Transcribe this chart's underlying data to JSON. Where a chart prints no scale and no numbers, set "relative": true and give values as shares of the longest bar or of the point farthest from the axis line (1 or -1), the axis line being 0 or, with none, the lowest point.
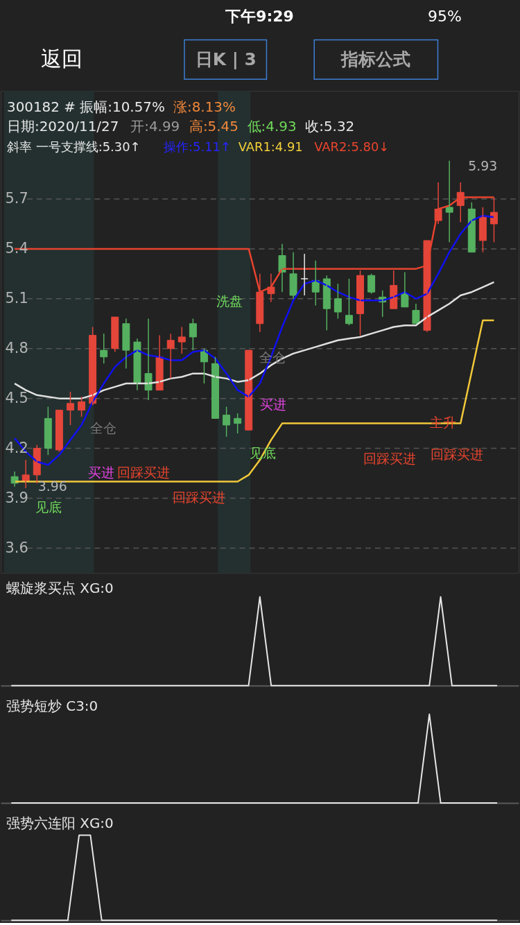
{
  "chart_data": [
    {
      "type": "candlestick",
      "categories": [
        null,
        null,
        null,
        null,
        null,
        null,
        null,
        null,
        null,
        null,
        null,
        null,
        null,
        null,
        null,
        null,
        null,
        null,
        null,
        null,
        null,
        null,
        null,
        null,
        null,
        null,
        null,
        null,
        null,
        null,
        null,
        null,
        null,
        null,
        null,
        null,
        null,
        null,
        null,
        null,
        null,
        null,
        null,
        null
      ],
      "ohlc": [
        [
          4.03,
          4.06,
          3.97,
          3.99
        ],
        [
          4.0,
          4.13,
          3.96,
          4.04
        ],
        [
          4.04,
          4.22,
          3.99,
          4.2
        ],
        [
          4.38,
          4.45,
          4.16,
          4.2
        ],
        [
          4.19,
          4.43,
          4.18,
          4.43
        ],
        [
          4.43,
          4.54,
          4.34,
          4.47
        ],
        [
          4.43,
          4.51,
          4.39,
          4.48
        ],
        [
          4.47,
          4.93,
          4.46,
          4.88
        ],
        [
          4.79,
          4.89,
          4.71,
          4.75
        ],
        [
          4.8,
          4.99,
          4.78,
          4.99
        ],
        [
          4.95,
          4.98,
          4.68,
          4.79
        ],
        [
          4.84,
          4.86,
          4.55,
          4.59
        ],
        [
          4.65,
          4.98,
          4.49,
          4.55
        ],
        [
          4.55,
          4.88,
          4.55,
          4.75
        ],
        [
          4.8,
          4.89,
          4.62,
          4.85
        ],
        [
          4.84,
          4.93,
          4.77,
          4.87
        ],
        [
          4.95,
          4.98,
          4.79,
          4.87
        ],
        [
          4.79,
          4.8,
          4.59,
          4.72
        ],
        [
          4.71,
          4.75,
          4.38,
          4.38
        ],
        [
          4.4,
          4.45,
          4.27,
          4.34
        ],
        [
          4.38,
          4.41,
          4.29,
          4.35
        ],
        [
          4.31,
          4.79,
          4.31,
          4.79
        ],
        [
          4.95,
          5.25,
          4.9,
          5.14
        ],
        [
          5.13,
          5.25,
          5.08,
          5.17
        ],
        [
          5.36,
          5.43,
          5.14,
          5.26
        ],
        [
          5.25,
          5.38,
          5.1,
          5.12
        ],
        [
          5.22,
          5.37,
          5.12,
          5.22
        ],
        [
          5.21,
          5.33,
          5.06,
          5.14
        ],
        [
          5.22,
          5.24,
          4.91,
          5.04
        ],
        [
          5.1,
          5.19,
          4.98,
          5.02
        ],
        [
          5.0,
          5.22,
          4.94,
          4.95
        ],
        [
          5.01,
          5.27,
          4.88,
          5.24
        ],
        [
          5.24,
          5.25,
          5.13,
          5.14
        ],
        [
          5.11,
          5.15,
          4.99,
          5.08
        ],
        [
          5.04,
          5.27,
          5.04,
          5.18
        ],
        [
          5.13,
          5.26,
          5.05,
          5.05
        ],
        [
          5.03,
          5.07,
          4.95,
          4.95
        ],
        [
          4.91,
          5.45,
          4.9,
          5.45
        ],
        [
          5.57,
          5.8,
          5.55,
          5.64
        ],
        [
          5.65,
          5.93,
          5.44,
          5.62
        ],
        [
          5.66,
          5.8,
          5.56,
          5.74
        ],
        [
          5.64,
          5.68,
          5.38,
          5.38
        ],
        [
          5.45,
          5.65,
          5.38,
          5.59
        ],
        [
          5.55,
          5.71,
          5.44,
          5.62
        ]
      ],
      "colors": [
        "#55b160",
        "#e5463a",
        "#e5463a",
        "#55b160",
        "#e5463a",
        "#e5463a",
        "#e5463a",
        "#e5463a",
        "#55b160",
        "#e5463a",
        "#55b160",
        "#55b160",
        "#55b160",
        "#e5463a",
        "#e5463a",
        "#e5463a",
        "#55b160",
        "#55b160",
        "#55b160",
        "#55b160",
        "#55b160",
        "#e5463a",
        "#e5463a",
        "#e5463a",
        "#55b160",
        "#55b160",
        "#e8e8e8",
        "#55b160",
        "#55b160",
        "#55b160",
        "#55b160",
        "#e5463a",
        "#55b160",
        "#55b160",
        "#e5463a",
        "#55b160",
        "#55b160",
        "#e5463a",
        "#e5463a",
        "#55b160",
        "#e5463a",
        "#55b160",
        "#e5463a",
        "#e5463a"
      ],
      "series": [
        {
          "type": "line",
          "color": "#e0e0e0",
          "values": [
            4.59,
            4.55,
            4.52,
            4.51,
            4.5,
            4.5,
            4.5,
            4.52,
            4.55,
            4.57,
            4.59,
            4.59,
            4.59,
            4.6,
            4.62,
            4.63,
            4.65,
            4.65,
            4.63,
            4.62,
            4.6,
            4.61,
            4.65,
            4.7,
            4.74,
            4.77,
            4.79,
            4.81,
            4.83,
            4.85,
            4.86,
            4.87,
            4.89,
            4.91,
            4.93,
            4.94,
            4.94,
            4.99,
            5.03,
            5.07,
            5.12,
            5.14,
            5.17,
            5.2
          ]
        },
        {
          "type": "line",
          "color": "#e8432e",
          "values": [
            5.4,
            5.4,
            5.4,
            5.4,
            5.4,
            5.4,
            5.4,
            5.4,
            5.4,
            5.4,
            5.4,
            5.4,
            5.4,
            5.4,
            5.4,
            5.4,
            5.4,
            5.4,
            5.4,
            5.4,
            5.4,
            5.4,
            5.14,
            5.17,
            5.28,
            5.28,
            5.28,
            5.28,
            5.28,
            5.28,
            5.28,
            5.28,
            5.28,
            5.28,
            5.28,
            5.28,
            5.28,
            5.3,
            5.64,
            5.66,
            5.71,
            5.71,
            5.71,
            5.71
          ]
        },
        {
          "type": "line",
          "color": "#f2c83a",
          "values": [
            4.0,
            4.0,
            4.0,
            4.0,
            4.0,
            4.0,
            4.0,
            4.0,
            4.0,
            4.0,
            4.0,
            4.0,
            4.0,
            4.0,
            4.0,
            4.0,
            4.0,
            4.0,
            4.0,
            4.0,
            4.0,
            4.04,
            4.13,
            4.25,
            4.35,
            4.35,
            4.35,
            4.35,
            4.35,
            4.35,
            4.35,
            4.35,
            4.35,
            4.35,
            4.35,
            4.35,
            4.35,
            4.35,
            4.35,
            4.35,
            4.35,
            4.66,
            4.97,
            4.97
          ]
        },
        {
          "type": "line",
          "color": "#1010f0",
          "values": [
            4.26,
            4.18,
            4.12,
            4.1,
            4.16,
            4.25,
            4.34,
            4.48,
            4.59,
            4.69,
            4.75,
            4.79,
            4.76,
            4.75,
            4.73,
            4.73,
            4.78,
            4.79,
            4.74,
            4.65,
            4.55,
            4.51,
            4.59,
            4.75,
            4.93,
            5.09,
            5.19,
            5.21,
            5.18,
            5.14,
            5.11,
            5.09,
            5.09,
            5.09,
            5.11,
            5.14,
            5.1,
            5.13,
            5.25,
            5.38,
            5.49,
            5.57,
            5.6,
            5.59
          ]
        }
      ],
      "ylim": [
        3.45,
        6.35
      ],
      "yticks": [
        3.6,
        3.9,
        4.2,
        4.5,
        4.8,
        5.1,
        5.4,
        5.7
      ],
      "grid": "y",
      "tick_labels": "y",
      "annotations": [
        "下午9:29",
        "95%",
        "返回",
        "日K | 3",
        "指标公式",
        "300182 # 振幅:10.57%",
        "涨:8.13%",
        "日期:2020/11/27",
        "开:4.99",
        "高:5.45",
        "低:4.93",
        "收:5.32",
        "斜率 一号支撑线:5.30↑",
        "操作:5.11↑",
        "VAR1:4.91",
        "VAR2:5.80↓",
        "洗盘",
        "全仓",
        "全仓",
        "买进",
        "见底",
        "回踩买进",
        "主升",
        "回踩买进",
        "买进",
        "回踩买进",
        "回踩买进",
        "见底",
        "5.93",
        "3.96"
      ]
    },
    {
      "type": "line",
      "title": "螺旋浆买点 XG:0",
      "relative": true,
      "tick_labels": false,
      "color": "#e6e6e6",
      "categories": [
        null,
        null,
        null,
        null,
        null,
        null,
        null,
        null,
        null,
        null,
        null,
        null,
        null,
        null,
        null,
        null,
        null,
        null,
        null,
        null,
        null,
        null,
        null,
        null,
        null,
        null,
        null,
        null,
        null,
        null,
        null,
        null,
        null,
        null,
        null,
        null,
        null,
        null,
        null,
        null,
        null,
        null,
        null,
        null
      ],
      "values": [
        0,
        0,
        0,
        0,
        0,
        0,
        0,
        0,
        0,
        0,
        0,
        0,
        0,
        0,
        0,
        0,
        0,
        0,
        0,
        0,
        0,
        0,
        1,
        0,
        0,
        0,
        0,
        0,
        0,
        0,
        0,
        0,
        0,
        0,
        0,
        0,
        0,
        0,
        1,
        0,
        0,
        0,
        0,
        0
      ]
    },
    {
      "type": "line",
      "title": "强势短炒 C3:0",
      "relative": true,
      "tick_labels": false,
      "color": "#e6e6e6",
      "categories": [
        null,
        null,
        null,
        null,
        null,
        null,
        null,
        null,
        null,
        null,
        null,
        null,
        null,
        null,
        null,
        null,
        null,
        null,
        null,
        null,
        null,
        null,
        null,
        null,
        null,
        null,
        null,
        null,
        null,
        null,
        null,
        null,
        null,
        null,
        null,
        null,
        null,
        null,
        null,
        null,
        null,
        null,
        null,
        null
      ],
      "values": [
        0,
        0,
        0,
        0,
        0,
        0,
        0,
        0,
        0,
        0,
        0,
        0,
        0,
        0,
        0,
        0,
        0,
        0,
        0,
        0,
        0,
        0,
        0,
        0,
        0,
        0,
        0,
        0,
        0,
        0,
        0,
        0,
        0,
        0,
        0,
        0,
        0,
        1,
        0,
        0,
        0,
        0,
        0,
        0
      ]
    },
    {
      "type": "line",
      "title": "强势六连阳 XG:0",
      "relative": true,
      "tick_labels": false,
      "color": "#e6e6e6",
      "categories": [
        null,
        null,
        null,
        null,
        null,
        null,
        null,
        null,
        null,
        null,
        null,
        null,
        null,
        null,
        null,
        null,
        null,
        null,
        null,
        null,
        null,
        null,
        null,
        null,
        null,
        null,
        null,
        null,
        null,
        null,
        null,
        null,
        null,
        null,
        null,
        null,
        null,
        null,
        null,
        null,
        null,
        null,
        null,
        null
      ],
      "values": [
        0,
        0,
        0,
        0,
        0,
        0,
        1,
        1,
        0,
        0,
        0,
        0,
        0,
        0,
        0,
        0,
        0,
        0,
        0,
        0,
        0,
        0,
        0,
        0,
        0,
        0,
        0,
        0,
        0,
        0,
        0,
        0,
        0,
        0,
        0,
        0,
        0,
        0,
        0,
        0,
        0,
        0,
        0,
        0
      ]
    }
  ]
}
